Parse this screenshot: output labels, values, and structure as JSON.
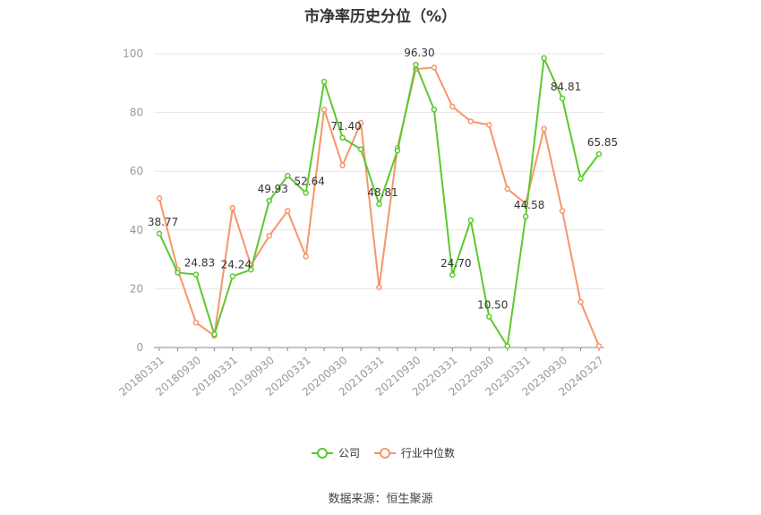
{
  "chart_data": {
    "type": "line",
    "title": "市净率历史分位（%）",
    "source": "数据来源：恒生聚源",
    "ylim": [
      0,
      100
    ],
    "yticks": [
      0,
      20,
      40,
      60,
      80,
      100
    ],
    "x_tick_labels": [
      "20180331",
      "20180930",
      "20190331",
      "20190930",
      "20200331",
      "20200930",
      "20210331",
      "20210930",
      "20220331",
      "20220930",
      "20230331",
      "20230930",
      "20240327"
    ],
    "x": [
      "20180331",
      "20180630",
      "20180930",
      "20181231",
      "20190331",
      "20190630",
      "20190930",
      "20191231",
      "20200331",
      "20200630",
      "20200930",
      "20201231",
      "20210331",
      "20210630",
      "20210930",
      "20211231",
      "20220331",
      "20220630",
      "20220930",
      "20221231",
      "20230331",
      "20230630",
      "20230930",
      "20231231",
      "20240327"
    ],
    "series": [
      {
        "name": "公司",
        "color": "#5cc82e",
        "values": [
          38.77,
          25.5,
          24.83,
          4.5,
          24.24,
          26.5,
          49.93,
          58.5,
          52.64,
          90.5,
          71.4,
          67.5,
          48.81,
          67.0,
          96.3,
          81.0,
          24.7,
          43.3,
          10.5,
          0.5,
          44.58,
          98.5,
          84.81,
          57.5,
          65.85
        ],
        "labels": {
          "0": "38.77",
          "2": "24.83",
          "4": "24.24",
          "6": "49.93",
          "8": "52.64",
          "10": "71.40",
          "12": "48.81",
          "14": "96.30",
          "16": "24.70",
          "18": "10.50",
          "20": "44.58",
          "22": "84.81",
          "24": "65.85"
        }
      },
      {
        "name": "行业中位数",
        "color": "#f5956b",
        "values": [
          50.8,
          26.5,
          8.5,
          4.0,
          47.5,
          28.0,
          38.0,
          46.5,
          31.0,
          81.0,
          62.0,
          76.5,
          20.5,
          68.0,
          94.8,
          95.3,
          82.0,
          77.0,
          75.8,
          54.0,
          49.0,
          74.5,
          46.5,
          15.5,
          0.5
        ]
      }
    ],
    "legend": {
      "position": "bottom"
    },
    "grid": true
  }
}
